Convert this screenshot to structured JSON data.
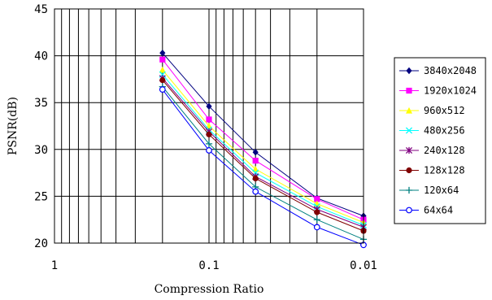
{
  "chart_data": {
    "type": "line",
    "xlabel": "Compression Ratio",
    "ylabel": "PSNR(dB)",
    "x_scale": "log",
    "x_reversed": true,
    "xlim": [
      1,
      0.01
    ],
    "ylim": [
      20,
      45
    ],
    "x_ticks": [
      1,
      0.1,
      0.01
    ],
    "x_tick_labels": [
      "1",
      "0.1",
      "0.01"
    ],
    "y_ticks": [
      20,
      25,
      30,
      35,
      40,
      45
    ],
    "grid": true,
    "legend_position": "right",
    "x": [
      0.2,
      0.1,
      0.05,
      0.02,
      0.01
    ],
    "series": [
      {
        "name": "3840x2048",
        "color": "#000080",
        "marker": "diamond",
        "values": [
          40.3,
          34.6,
          29.7,
          24.8,
          22.9
        ]
      },
      {
        "name": "1920x1024",
        "color": "#FF00FF",
        "marker": "square",
        "values": [
          39.6,
          33.2,
          28.8,
          24.7,
          22.5
        ]
      },
      {
        "name": "960x512",
        "color": "#FFFF00",
        "marker": "triangle",
        "values": [
          38.5,
          32.5,
          27.9,
          24.2,
          22.2
        ]
      },
      {
        "name": "480x256",
        "color": "#00FFFF",
        "marker": "x",
        "values": [
          38.0,
          32.1,
          27.5,
          23.9,
          21.9
        ]
      },
      {
        "name": "240x128",
        "color": "#800080",
        "marker": "star",
        "values": [
          37.6,
          31.9,
          27.1,
          23.6,
          21.7
        ]
      },
      {
        "name": "128x128",
        "color": "#800000",
        "marker": "circle",
        "values": [
          37.4,
          31.6,
          26.9,
          23.3,
          21.3
        ]
      },
      {
        "name": "120x64",
        "color": "#008080",
        "marker": "plus",
        "values": [
          36.7,
          30.6,
          26.0,
          22.5,
          20.4
        ]
      },
      {
        "name": "64x64",
        "color": "#0000FF",
        "marker": "open-circle",
        "values": [
          36.4,
          29.9,
          25.5,
          21.7,
          19.8
        ]
      }
    ]
  }
}
